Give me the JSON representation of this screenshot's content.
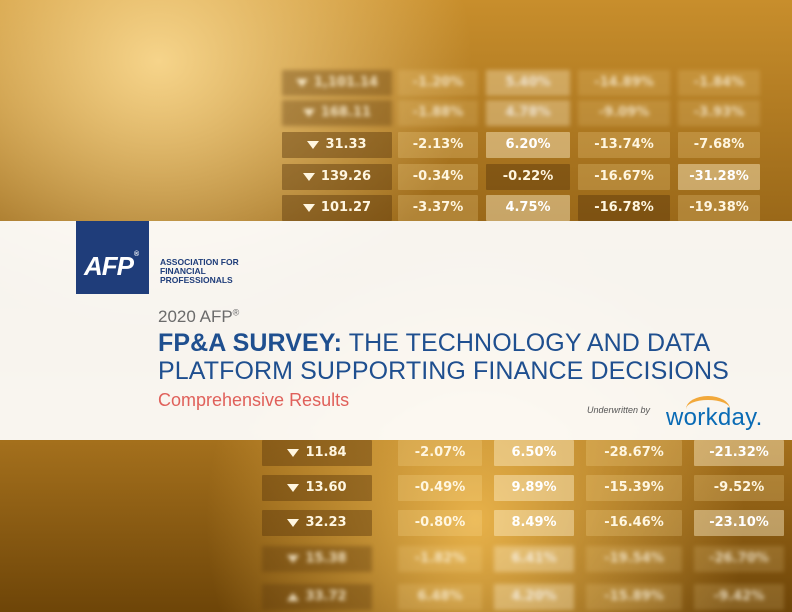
{
  "ticker": {
    "rows": [
      {
        "price": "1,101.14",
        "c1": "-1.20%",
        "c2": "5.40%",
        "c3": "-14.89%",
        "c4": "-1.84%"
      },
      {
        "price": "168.11",
        "c1": "-1.88%",
        "c2": "4.78%",
        "c3": "-9.09%",
        "c4": "-3.93%"
      },
      {
        "price": "31.33",
        "c1": "-2.13%",
        "c2": "6.20%",
        "c3": "-13.74%",
        "c4": "-7.68%"
      },
      {
        "price": "139.26",
        "c1": "-0.34%",
        "c2": "-0.22%",
        "c3": "-16.67%",
        "c4": "-31.28%"
      },
      {
        "price": "101.27",
        "c1": "-3.37%",
        "c2": "4.75%",
        "c3": "-16.78%",
        "c4": "-19.38%"
      },
      {
        "price": "11.84",
        "c1": "-2.07%",
        "c2": "6.50%",
        "c3": "-28.67%",
        "c4": "-21.32%"
      },
      {
        "price": "13.60",
        "c1": "-0.49%",
        "c2": "9.89%",
        "c3": "-15.39%",
        "c4": "-9.52%"
      },
      {
        "price": "32.23",
        "c1": "-0.80%",
        "c2": "8.49%",
        "c3": "-16.46%",
        "c4": "-23.10%"
      },
      {
        "price": "15.38",
        "c1": "-1.82%",
        "c2": "6.41%",
        "c3": "-19.54%",
        "c4": "-26.70%"
      },
      {
        "price": "33.72",
        "c1": "6.48%",
        "c2": "4.20%",
        "c3": "-15.89%",
        "c4": "-9.42%"
      }
    ]
  },
  "logo": {
    "mark": "AFP",
    "reg": "®"
  },
  "org_name": "ASSOCIATION FOR FINANCIAL PROFESSIONALS",
  "eyebrow": {
    "text": "2020 AFP",
    "reg": "®"
  },
  "title": {
    "bold": "FP&A SURVEY:",
    "rest": " THE TECHNOLOGY AND DATA PLATFORM SUPPORTING FINANCE DECISIONS"
  },
  "subtitle": "Comprehensive Results",
  "underwritten_label": "Underwritten by",
  "sponsor": "workday."
}
